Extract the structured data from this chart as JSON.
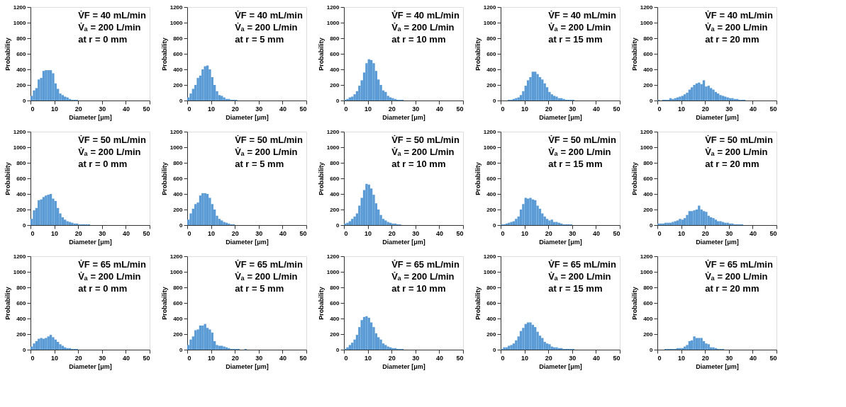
{
  "chart_data": [
    {
      "type": "histogram",
      "xlabel": "Diameter [μm]",
      "ylabel": "Probability",
      "color": "#5b9bd5",
      "xlim": [
        0,
        50
      ],
      "ylim": [
        0,
        1200
      ],
      "xticks": [
        0,
        10,
        20,
        30,
        40,
        50
      ],
      "yticks": [
        0,
        200,
        400,
        600,
        800,
        1000,
        1200
      ],
      "annotations": [
        "V̇F = 40 mL/min",
        "V̇ₐ = 200 L/min",
        "at r = 0 mm"
      ],
      "bins": [
        0,
        1,
        2,
        3,
        4,
        5,
        6,
        7,
        8,
        9,
        10,
        11,
        12,
        13,
        14,
        15,
        16,
        17,
        18,
        19,
        20,
        21,
        22,
        23,
        24,
        25,
        26,
        27,
        28,
        29,
        30,
        31,
        32,
        33,
        34,
        35,
        36,
        37,
        38,
        39,
        40
      ],
      "values": [
        60,
        130,
        160,
        270,
        290,
        380,
        390,
        390,
        390,
        350,
        220,
        150,
        90,
        70,
        50,
        40,
        20,
        10,
        10,
        10,
        0,
        0,
        0,
        0,
        0,
        0,
        0,
        0,
        0,
        0,
        0,
        0,
        0,
        0,
        0,
        0,
        0,
        0,
        0,
        0
      ]
    },
    {
      "type": "histogram",
      "xlabel": "Diameter [μm]",
      "ylabel": "Probability",
      "color": "#5b9bd5",
      "xlim": [
        0,
        50
      ],
      "ylim": [
        0,
        1200
      ],
      "xticks": [
        0,
        10,
        20,
        30,
        40,
        50
      ],
      "yticks": [
        0,
        200,
        400,
        600,
        800,
        1000,
        1200
      ],
      "annotations": [
        "V̇F = 40 mL/min",
        "V̇ₐ = 200 L/min",
        "at r = 5 mm"
      ],
      "bins": [
        0,
        1,
        2,
        3,
        4,
        5,
        6,
        7,
        8,
        9,
        10,
        11,
        12,
        13,
        14,
        15,
        16,
        17,
        18,
        19,
        20,
        21,
        22,
        23,
        24,
        25,
        26,
        27,
        28,
        29,
        30,
        31,
        32,
        33,
        34,
        35,
        36,
        37,
        38,
        39,
        40
      ],
      "values": [
        40,
        90,
        150,
        200,
        290,
        320,
        400,
        440,
        450,
        400,
        300,
        200,
        120,
        70,
        60,
        40,
        20,
        20,
        10,
        10,
        10,
        0,
        0,
        0,
        0,
        0,
        0,
        0,
        0,
        0,
        0,
        0,
        0,
        0,
        0,
        0,
        0,
        0,
        0,
        0
      ]
    },
    {
      "type": "histogram",
      "xlabel": "Diameter [μm]",
      "ylabel": "Probability",
      "color": "#5b9bd5",
      "xlim": [
        0,
        50
      ],
      "ylim": [
        0,
        1200
      ],
      "xticks": [
        0,
        10,
        20,
        30,
        40,
        50
      ],
      "yticks": [
        0,
        200,
        400,
        600,
        800,
        1000,
        1200
      ],
      "annotations": [
        "V̇F = 40 mL/min",
        "V̇ₐ = 200 L/min",
        "at r = 10 mm"
      ],
      "bins": [
        0,
        1,
        2,
        3,
        4,
        5,
        6,
        7,
        8,
        9,
        10,
        11,
        12,
        13,
        14,
        15,
        16,
        17,
        18,
        19,
        20,
        21,
        22,
        23,
        24,
        25,
        26,
        27,
        28,
        29,
        30,
        31,
        32,
        33,
        34,
        35,
        36,
        37,
        38,
        39,
        40
      ],
      "values": [
        10,
        20,
        40,
        50,
        80,
        120,
        190,
        260,
        360,
        480,
        530,
        520,
        480,
        380,
        270,
        200,
        130,
        110,
        60,
        40,
        30,
        20,
        10,
        10,
        10,
        0,
        0,
        0,
        0,
        0,
        0,
        0,
        0,
        0,
        0,
        0,
        0,
        0,
        0,
        0
      ]
    },
    {
      "type": "histogram",
      "xlabel": "Diameter [μm]",
      "ylabel": "Probability",
      "color": "#5b9bd5",
      "xlim": [
        0,
        50
      ],
      "ylim": [
        0,
        1200
      ],
      "xticks": [
        0,
        10,
        20,
        30,
        40,
        50
      ],
      "yticks": [
        0,
        200,
        400,
        600,
        800,
        1000,
        1200
      ],
      "annotations": [
        "V̇F = 40 mL/min",
        "V̇ₐ = 200 L/min",
        "at r = 15 mm"
      ],
      "bins": [
        0,
        1,
        2,
        3,
        4,
        5,
        6,
        7,
        8,
        9,
        10,
        11,
        12,
        13,
        14,
        15,
        16,
        17,
        18,
        19,
        20,
        21,
        22,
        23,
        24,
        25,
        26,
        27,
        28,
        29,
        30,
        31,
        32,
        33,
        34,
        35,
        36,
        37,
        38,
        39,
        40
      ],
      "values": [
        0,
        0,
        0,
        10,
        10,
        20,
        30,
        40,
        70,
        120,
        190,
        260,
        300,
        370,
        370,
        340,
        300,
        270,
        220,
        170,
        110,
        80,
        60,
        50,
        30,
        30,
        20,
        10,
        10,
        10,
        10,
        0,
        0,
        0,
        0,
        0,
        0,
        0,
        0,
        0
      ]
    },
    {
      "type": "histogram",
      "xlabel": "Diameter [μm]",
      "ylabel": "Probability",
      "color": "#5b9bd5",
      "xlim": [
        0,
        50
      ],
      "ylim": [
        0,
        1200
      ],
      "xticks": [
        0,
        10,
        20,
        30,
        40,
        50
      ],
      "yticks": [
        0,
        200,
        400,
        600,
        800,
        1000,
        1200
      ],
      "annotations": [
        "V̇F = 40 mL/min",
        "V̇ₐ = 200 L/min",
        "at r = 20 mm"
      ],
      "bins": [
        0,
        1,
        2,
        3,
        4,
        5,
        6,
        7,
        8,
        9,
        10,
        11,
        12,
        13,
        14,
        15,
        16,
        17,
        18,
        19,
        20,
        21,
        22,
        23,
        24,
        25,
        26,
        27,
        28,
        29,
        30,
        31,
        32,
        33,
        34,
        35,
        36,
        37,
        38,
        39,
        40
      ],
      "values": [
        10,
        0,
        10,
        10,
        10,
        30,
        20,
        30,
        40,
        50,
        60,
        80,
        100,
        140,
        170,
        200,
        220,
        230,
        210,
        260,
        180,
        190,
        160,
        140,
        110,
        90,
        70,
        60,
        50,
        40,
        30,
        30,
        20,
        20,
        10,
        10,
        10,
        0,
        0,
        0
      ]
    },
    {
      "type": "histogram",
      "xlabel": "Diameter [μm]",
      "ylabel": "Probability",
      "color": "#5b9bd5",
      "xlim": [
        0,
        50
      ],
      "ylim": [
        0,
        1200
      ],
      "xticks": [
        0,
        10,
        20,
        30,
        40,
        50
      ],
      "yticks": [
        0,
        200,
        400,
        600,
        800,
        1000,
        1200
      ],
      "annotations": [
        "V̇F = 50 mL/min",
        "V̇ₐ = 200 L/min",
        "at r = 0 mm"
      ],
      "bins": [
        0,
        1,
        2,
        3,
        4,
        5,
        6,
        7,
        8,
        9,
        10,
        11,
        12,
        13,
        14,
        15,
        16,
        17,
        18,
        19,
        20,
        21,
        22,
        23,
        24,
        25,
        26,
        27,
        28,
        29,
        30,
        31,
        32,
        33,
        34,
        35,
        36,
        37,
        38,
        39,
        40
      ],
      "values": [
        80,
        190,
        220,
        320,
        330,
        360,
        380,
        390,
        400,
        340,
        310,
        220,
        150,
        100,
        70,
        50,
        40,
        30,
        20,
        20,
        10,
        10,
        10,
        10,
        10,
        0,
        0,
        0,
        0,
        0,
        0,
        0,
        0,
        0,
        0,
        0,
        0,
        0,
        0,
        0
      ]
    },
    {
      "type": "histogram",
      "xlabel": "Diameter [μm]",
      "ylabel": "Probability",
      "color": "#5b9bd5",
      "xlim": [
        0,
        50
      ],
      "ylim": [
        0,
        1200
      ],
      "xticks": [
        0,
        10,
        20,
        30,
        40,
        50
      ],
      "yticks": [
        0,
        200,
        400,
        600,
        800,
        1000,
        1200
      ],
      "annotations": [
        "V̇F = 50 mL/min",
        "V̇ₐ = 200 L/min",
        "at r = 5 mm"
      ],
      "bins": [
        0,
        1,
        2,
        3,
        4,
        5,
        6,
        7,
        8,
        9,
        10,
        11,
        12,
        13,
        14,
        15,
        16,
        17,
        18,
        19,
        20,
        21,
        22,
        23,
        24,
        25,
        26,
        27,
        28,
        29,
        30,
        31,
        32,
        33,
        34,
        35,
        36,
        37,
        38,
        39,
        40
      ],
      "values": [
        70,
        150,
        210,
        270,
        290,
        380,
        410,
        410,
        400,
        350,
        270,
        200,
        120,
        80,
        60,
        40,
        30,
        20,
        10,
        10,
        0,
        0,
        0,
        0,
        0,
        0,
        0,
        0,
        0,
        0,
        0,
        0,
        0,
        0,
        0,
        0,
        0,
        0,
        0,
        0
      ]
    },
    {
      "type": "histogram",
      "xlabel": "Diameter [μm]",
      "ylabel": "Probability",
      "color": "#5b9bd5",
      "xlim": [
        0,
        50
      ],
      "ylim": [
        0,
        1200
      ],
      "xticks": [
        0,
        10,
        20,
        30,
        40,
        50
      ],
      "yticks": [
        0,
        200,
        400,
        600,
        800,
        1000,
        1200
      ],
      "annotations": [
        "V̇F = 50 mL/min",
        "V̇ₐ = 200 L/min",
        "at r = 10 mm"
      ],
      "bins": [
        0,
        1,
        2,
        3,
        4,
        5,
        6,
        7,
        8,
        9,
        10,
        11,
        12,
        13,
        14,
        15,
        16,
        17,
        18,
        19,
        20,
        21,
        22,
        23,
        24,
        25,
        26,
        27,
        28,
        29,
        30,
        31,
        32,
        33,
        34,
        35,
        36,
        37,
        38,
        39,
        40
      ],
      "values": [
        20,
        30,
        50,
        80,
        110,
        150,
        250,
        350,
        450,
        530,
        520,
        470,
        390,
        280,
        200,
        130,
        80,
        60,
        40,
        30,
        20,
        20,
        10,
        10,
        0,
        0,
        0,
        0,
        0,
        0,
        0,
        0,
        0,
        0,
        0,
        0,
        0,
        0,
        0,
        0
      ]
    },
    {
      "type": "histogram",
      "xlabel": "Diameter [μm]",
      "ylabel": "Probability",
      "color": "#5b9bd5",
      "xlim": [
        0,
        50
      ],
      "ylim": [
        0,
        1200
      ],
      "xticks": [
        0,
        10,
        20,
        30,
        40,
        50
      ],
      "yticks": [
        0,
        200,
        400,
        600,
        800,
        1000,
        1200
      ],
      "annotations": [
        "V̇F = 50 mL/min",
        "V̇ₐ = 200 L/min",
        "at r = 15 mm"
      ],
      "bins": [
        0,
        1,
        2,
        3,
        4,
        5,
        6,
        7,
        8,
        9,
        10,
        11,
        12,
        13,
        14,
        15,
        16,
        17,
        18,
        19,
        20,
        21,
        22,
        23,
        24,
        25,
        26,
        27,
        28,
        29,
        30,
        31,
        32,
        33,
        34,
        35,
        36,
        37,
        38,
        39,
        40
      ],
      "values": [
        10,
        10,
        20,
        30,
        40,
        50,
        80,
        110,
        200,
        270,
        350,
        340,
        350,
        330,
        320,
        250,
        210,
        150,
        110,
        80,
        60,
        70,
        40,
        40,
        30,
        20,
        10,
        10,
        10,
        10,
        0,
        0,
        0,
        0,
        0,
        0,
        0,
        0,
        0,
        0
      ]
    },
    {
      "type": "histogram",
      "xlabel": "Diameter [μm]",
      "ylabel": "Probability",
      "color": "#5b9bd5",
      "xlim": [
        0,
        50
      ],
      "ylim": [
        0,
        1200
      ],
      "xticks": [
        0,
        10,
        20,
        30,
        40,
        50
      ],
      "yticks": [
        0,
        200,
        400,
        600,
        800,
        1000,
        1200
      ],
      "annotations": [
        "V̇F = 50 mL/min",
        "V̇ₐ = 200 L/min",
        "at r = 20 mm"
      ],
      "bins": [
        0,
        1,
        2,
        3,
        4,
        5,
        6,
        7,
        8,
        9,
        10,
        11,
        12,
        13,
        14,
        15,
        16,
        17,
        18,
        19,
        20,
        21,
        22,
        23,
        24,
        25,
        26,
        27,
        28,
        29,
        30,
        31,
        32,
        33,
        34,
        35,
        36,
        37,
        38,
        39,
        40
      ],
      "values": [
        20,
        20,
        20,
        30,
        30,
        30,
        40,
        50,
        60,
        80,
        70,
        90,
        130,
        180,
        180,
        190,
        200,
        250,
        200,
        180,
        170,
        120,
        100,
        90,
        70,
        50,
        50,
        40,
        30,
        30,
        20,
        20,
        10,
        10,
        10,
        10,
        0,
        0,
        0,
        0
      ]
    },
    {
      "type": "histogram",
      "xlabel": "Diameter [μm]",
      "ylabel": "Probability",
      "color": "#5b9bd5",
      "xlim": [
        0,
        50
      ],
      "ylim": [
        0,
        1200
      ],
      "xticks": [
        0,
        10,
        20,
        30,
        40,
        50
      ],
      "yticks": [
        0,
        200,
        400,
        600,
        800,
        1000,
        1200
      ],
      "annotations": [
        "V̇F = 65 mL/min",
        "V̇ₐ = 200 L/min",
        "at r = 0 mm"
      ],
      "bins": [
        0,
        1,
        2,
        3,
        4,
        5,
        6,
        7,
        8,
        9,
        10,
        11,
        12,
        13,
        14,
        15,
        16,
        17,
        18,
        19,
        20,
        21,
        22,
        23,
        24,
        25,
        26,
        27,
        28,
        29,
        30,
        31,
        32,
        33,
        34,
        35,
        36,
        37,
        38,
        39,
        40
      ],
      "values": [
        40,
        80,
        110,
        140,
        150,
        140,
        150,
        170,
        190,
        160,
        130,
        100,
        70,
        50,
        30,
        20,
        20,
        10,
        10,
        10,
        0,
        0,
        0,
        0,
        0,
        0,
        0,
        0,
        0,
        0,
        0,
        0,
        0,
        0,
        0,
        0,
        0,
        0,
        0,
        0
      ]
    },
    {
      "type": "histogram",
      "xlabel": "Diameter [μm]",
      "ylabel": "Probability",
      "color": "#5b9bd5",
      "xlim": [
        0,
        50
      ],
      "ylim": [
        0,
        1200
      ],
      "xticks": [
        0,
        10,
        20,
        30,
        40,
        50
      ],
      "yticks": [
        0,
        200,
        400,
        600,
        800,
        1000,
        1200
      ],
      "annotations": [
        "V̇F = 65 mL/min",
        "V̇ₐ = 200 L/min",
        "at r = 5 mm"
      ],
      "bins": [
        0,
        1,
        2,
        3,
        4,
        5,
        6,
        7,
        8,
        9,
        10,
        11,
        12,
        13,
        14,
        15,
        16,
        17,
        18,
        19,
        20,
        21,
        22,
        23,
        24,
        25,
        26,
        27,
        28,
        29,
        30,
        31,
        32,
        33,
        34,
        35,
        36,
        37,
        38,
        39,
        40
      ],
      "values": [
        60,
        130,
        170,
        250,
        260,
        310,
        310,
        330,
        280,
        260,
        220,
        110,
        60,
        50,
        50,
        40,
        30,
        20,
        10,
        10,
        10,
        10,
        0,
        0,
        10,
        0,
        0,
        0,
        0,
        0,
        0,
        0,
        0,
        0,
        0,
        0,
        0,
        0,
        0,
        0
      ]
    },
    {
      "type": "histogram",
      "xlabel": "Diameter [μm]",
      "ylabel": "Probability",
      "color": "#5b9bd5",
      "xlim": [
        0,
        50
      ],
      "ylim": [
        0,
        1200
      ],
      "xticks": [
        0,
        10,
        20,
        30,
        40,
        50
      ],
      "yticks": [
        0,
        200,
        400,
        600,
        800,
        1000,
        1200
      ],
      "annotations": [
        "V̇F = 65 mL/min",
        "V̇ₐ = 200 L/min",
        "at r = 10 mm"
      ],
      "bins": [
        0,
        1,
        2,
        3,
        4,
        5,
        6,
        7,
        8,
        9,
        10,
        11,
        12,
        13,
        14,
        15,
        16,
        17,
        18,
        19,
        20,
        21,
        22,
        23,
        24,
        25,
        26,
        27,
        28,
        29,
        30,
        31,
        32,
        33,
        34,
        35,
        36,
        37,
        38,
        39,
        40
      ],
      "values": [
        10,
        30,
        60,
        90,
        130,
        190,
        290,
        380,
        420,
        430,
        410,
        350,
        290,
        210,
        160,
        130,
        80,
        60,
        40,
        30,
        20,
        20,
        10,
        10,
        10,
        0,
        0,
        0,
        0,
        0,
        0,
        0,
        0,
        0,
        0,
        0,
        0,
        0,
        0,
        0
      ]
    },
    {
      "type": "histogram",
      "xlabel": "Diameter [μm]",
      "ylabel": "Probability",
      "color": "#5b9bd5",
      "xlim": [
        0,
        50
      ],
      "ylim": [
        0,
        1200
      ],
      "xticks": [
        0,
        10,
        20,
        30,
        40,
        50
      ],
      "yticks": [
        0,
        200,
        400,
        600,
        800,
        1000,
        1200
      ],
      "annotations": [
        "V̇F = 65 mL/min",
        "V̇ₐ = 200 L/min",
        "at r = 15 mm"
      ],
      "bins": [
        0,
        1,
        2,
        3,
        4,
        5,
        6,
        7,
        8,
        9,
        10,
        11,
        12,
        13,
        14,
        15,
        16,
        17,
        18,
        19,
        20,
        21,
        22,
        23,
        24,
        25,
        26,
        27,
        28,
        29,
        30,
        31,
        32,
        33,
        34,
        35,
        36,
        37,
        38,
        39,
        40
      ],
      "values": [
        10,
        30,
        30,
        50,
        60,
        80,
        120,
        170,
        240,
        280,
        330,
        350,
        350,
        320,
        290,
        230,
        180,
        150,
        100,
        80,
        70,
        40,
        30,
        30,
        20,
        20,
        10,
        10,
        10,
        10,
        10,
        0,
        0,
        0,
        0,
        0,
        0,
        0,
        0,
        0
      ]
    },
    {
      "type": "histogram",
      "xlabel": "Diameter [μm]",
      "ylabel": "Probability",
      "color": "#5b9bd5",
      "xlim": [
        0,
        50
      ],
      "ylim": [
        0,
        1200
      ],
      "xticks": [
        0,
        10,
        20,
        30,
        40,
        50
      ],
      "yticks": [
        0,
        200,
        400,
        600,
        800,
        1000,
        1200
      ],
      "annotations": [
        "V̇F = 65 mL/min",
        "V̇ₐ = 200 L/min",
        "at r = 20 mm"
      ],
      "bins": [
        0,
        1,
        2,
        3,
        4,
        5,
        6,
        7,
        8,
        9,
        10,
        11,
        12,
        13,
        14,
        15,
        16,
        17,
        18,
        19,
        20,
        21,
        22,
        23,
        24,
        25,
        26,
        27,
        28,
        29,
        30,
        31,
        32,
        33,
        34,
        35,
        36,
        37,
        38,
        39,
        40
      ],
      "values": [
        0,
        0,
        0,
        10,
        10,
        10,
        10,
        10,
        20,
        20,
        20,
        40,
        60,
        110,
        120,
        170,
        150,
        150,
        150,
        110,
        80,
        70,
        30,
        30,
        20,
        10,
        10,
        10,
        0,
        0,
        0,
        0,
        0,
        0,
        0,
        0,
        0,
        0,
        0,
        0
      ]
    }
  ]
}
